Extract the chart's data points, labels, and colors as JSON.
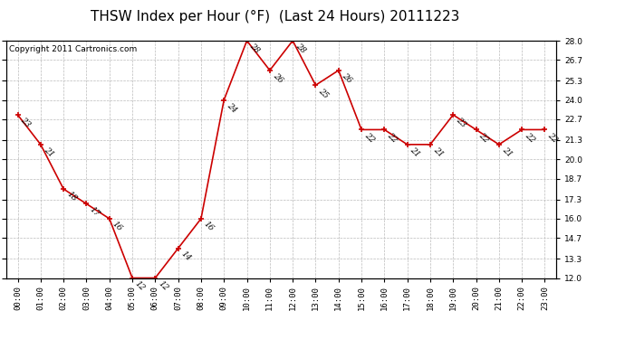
{
  "title": "THSW Index per Hour (°F)  (Last 24 Hours) 20111223",
  "copyright": "Copyright 2011 Cartronics.com",
  "hours": [
    "00:00",
    "01:00",
    "02:00",
    "03:00",
    "04:00",
    "05:00",
    "06:00",
    "07:00",
    "08:00",
    "09:00",
    "10:00",
    "11:00",
    "12:00",
    "13:00",
    "14:00",
    "15:00",
    "16:00",
    "17:00",
    "18:00",
    "19:00",
    "20:00",
    "21:00",
    "22:00",
    "23:00"
  ],
  "values": [
    23,
    21,
    18,
    17,
    16,
    12,
    12,
    14,
    16,
    24,
    28,
    26,
    28,
    25,
    26,
    22,
    22,
    21,
    21,
    23,
    22,
    21,
    22,
    22
  ],
  "ylim_min": 12.0,
  "ylim_max": 28.0,
  "yticks": [
    12.0,
    13.3,
    14.7,
    16.0,
    17.3,
    18.7,
    20.0,
    21.3,
    22.7,
    24.0,
    25.3,
    26.7,
    28.0
  ],
  "line_color": "#cc0000",
  "marker": "+",
  "bg_color": "#ffffff",
  "grid_color": "#bbbbbb",
  "title_fontsize": 11,
  "copyright_fontsize": 6.5,
  "label_fontsize": 6.5,
  "tick_fontsize": 6.5
}
